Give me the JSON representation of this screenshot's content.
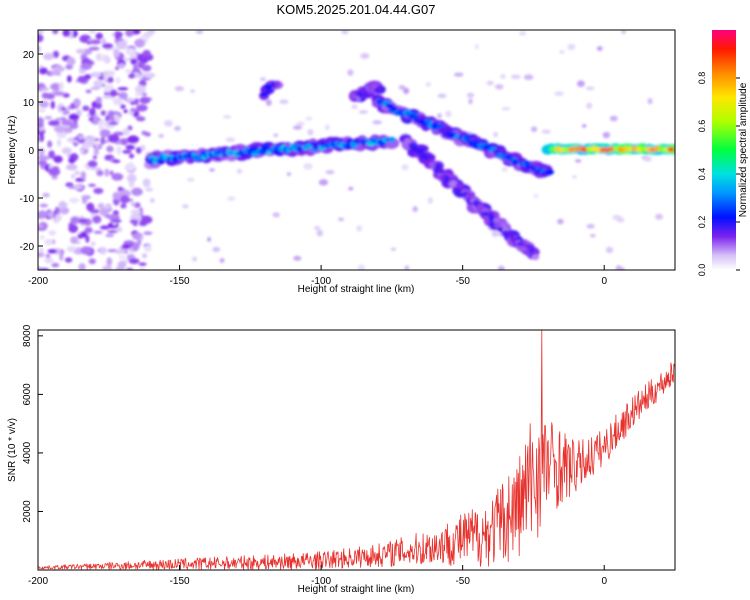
{
  "figure": {
    "title": "KOM5.2025.201.04.44.G07"
  },
  "chart_data": [
    {
      "type": "heatmap",
      "title": "KOM5.2025.201.04.44.G07",
      "xlabel": "Height of straight line (km)",
      "ylabel": "Frequency (Hz)",
      "xlim": [
        -200,
        25
      ],
      "ylim": [
        -25,
        25
      ],
      "x_ticks": [
        -200,
        -150,
        -100,
        -50,
        0
      ],
      "y_ticks": [
        -20,
        -10,
        0,
        10,
        20
      ],
      "colorbar": {
        "label": "Normalized spectral amplitude",
        "range": [
          0,
          1
        ],
        "ticks": [
          0.0,
          0.2,
          0.4,
          0.6,
          0.8
        ]
      },
      "features": [
        {
          "name": "scattered-noise-region",
          "x": [
            -200,
            -160
          ],
          "y": [
            -25,
            25
          ],
          "amplitude": 0.1
        },
        {
          "name": "main-band",
          "x": [
            -160,
            -75
          ],
          "y": [
            -2,
            2
          ],
          "amplitude": 0.3
        },
        {
          "name": "upper-island",
          "x": [
            -120,
            -116
          ],
          "y": [
            12,
            14
          ],
          "amplitude": 0.2
        },
        {
          "name": "upper-island-2",
          "x": [
            -88,
            -80
          ],
          "y": [
            11,
            13
          ],
          "amplitude": 0.15
        },
        {
          "name": "descending-arm-1",
          "x": [
            -80,
            -20
          ],
          "y": [
            10,
            -5
          ],
          "amplitude": 0.25
        },
        {
          "name": "descending-arm-2",
          "x": [
            -70,
            -25
          ],
          "y": [
            2,
            -22
          ],
          "amplitude": 0.15
        },
        {
          "name": "strong-carrier",
          "x": [
            -20,
            25
          ],
          "y": [
            0,
            1
          ],
          "amplitude": 0.9
        }
      ]
    },
    {
      "type": "line",
      "xlabel": "Height of straight line (km)",
      "ylabel": "SNR (10 * v/v)",
      "xlim": [
        -200,
        25
      ],
      "ylim": [
        0,
        8200
      ],
      "x_ticks": [
        -200,
        -150,
        -100,
        -50,
        0
      ],
      "y_ticks": [
        2000,
        4000,
        6000,
        8000
      ],
      "series_color": "#e8312d",
      "envelope": {
        "x": [
          -200,
          -150,
          -120,
          -100,
          -80,
          -60,
          -40,
          -30,
          -25,
          -20,
          -10,
          0,
          10,
          25
        ],
        "mean": [
          80,
          200,
          260,
          330,
          500,
          800,
          1300,
          2200,
          3200,
          3600,
          3500,
          4200,
          5400,
          6800
        ],
        "spread": [
          60,
          250,
          320,
          380,
          500,
          800,
          1500,
          2300,
          3000,
          2200,
          1100,
          800,
          700,
          500
        ]
      },
      "peak": {
        "x": -22,
        "y": 8200
      }
    }
  ]
}
